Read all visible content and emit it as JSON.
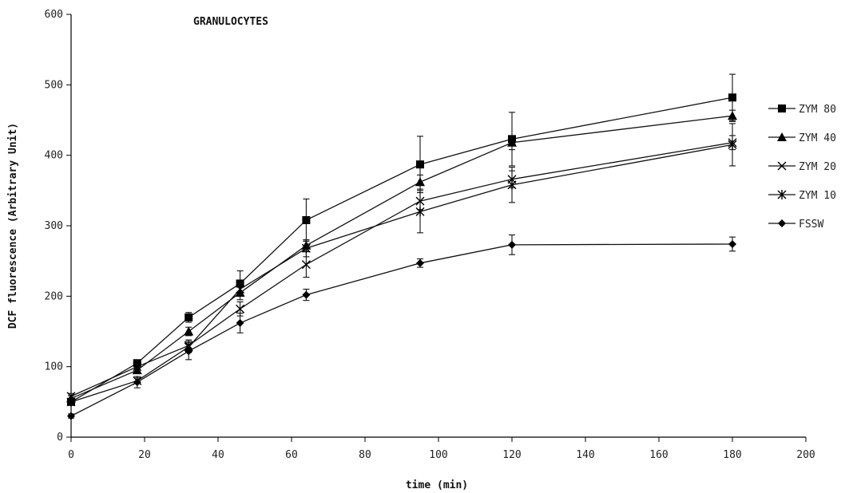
{
  "chart_data": {
    "type": "line",
    "title": "GRANULOCYTES",
    "xlabel": "time (min)",
    "ylabel": "DCF fluorescence (Arbitrary Unit)",
    "xlim": [
      0,
      200
    ],
    "ylim": [
      0,
      600
    ],
    "xticks": [
      0,
      20,
      40,
      60,
      80,
      100,
      120,
      140,
      160,
      180,
      200
    ],
    "yticks": [
      0,
      100,
      200,
      300,
      400,
      500,
      600
    ],
    "xtick_labels": [
      "0",
      "20",
      "40",
      "60",
      "80",
      "100",
      "120",
      "140",
      "160",
      "180",
      "200"
    ],
    "ytick_labels": [
      "0",
      "100",
      "200",
      "300",
      "400",
      "500",
      "600"
    ],
    "grid": false,
    "legend_position": "right",
    "x": [
      0,
      18,
      32,
      46,
      64,
      95,
      120,
      180
    ],
    "series": [
      {
        "name": "ZYM 80",
        "marker": "square",
        "values": [
          50,
          105,
          170,
          218,
          308,
          387,
          423,
          482
        ],
        "errors": [
          4,
          4,
          7,
          18,
          30,
          40,
          38,
          33
        ]
      },
      {
        "name": "ZYM 40",
        "marker": "triangle",
        "values": [
          55,
          95,
          150,
          205,
          272,
          362,
          418,
          456
        ],
        "errors": [
          4,
          4,
          6,
          10,
          8,
          10,
          10,
          8
        ]
      },
      {
        "name": "ZYM 20",
        "marker": "x",
        "values": [
          58,
          100,
          130,
          182,
          245,
          335,
          366,
          418
        ],
        "errors": [
          4,
          4,
          8,
          10,
          18,
          12,
          12,
          10
        ]
      },
      {
        "name": "ZYM 10",
        "marker": "asterisk",
        "values": [
          50,
          80,
          128,
          210,
          268,
          320,
          358,
          415
        ],
        "errors": [
          4,
          4,
          8,
          8,
          12,
          30,
          25,
          30
        ]
      },
      {
        "name": "FSSW",
        "marker": "diamond",
        "values": [
          30,
          78,
          122,
          162,
          202,
          247,
          273,
          274
        ],
        "errors": [
          3,
          8,
          12,
          14,
          8,
          6,
          14,
          10
        ]
      }
    ]
  }
}
